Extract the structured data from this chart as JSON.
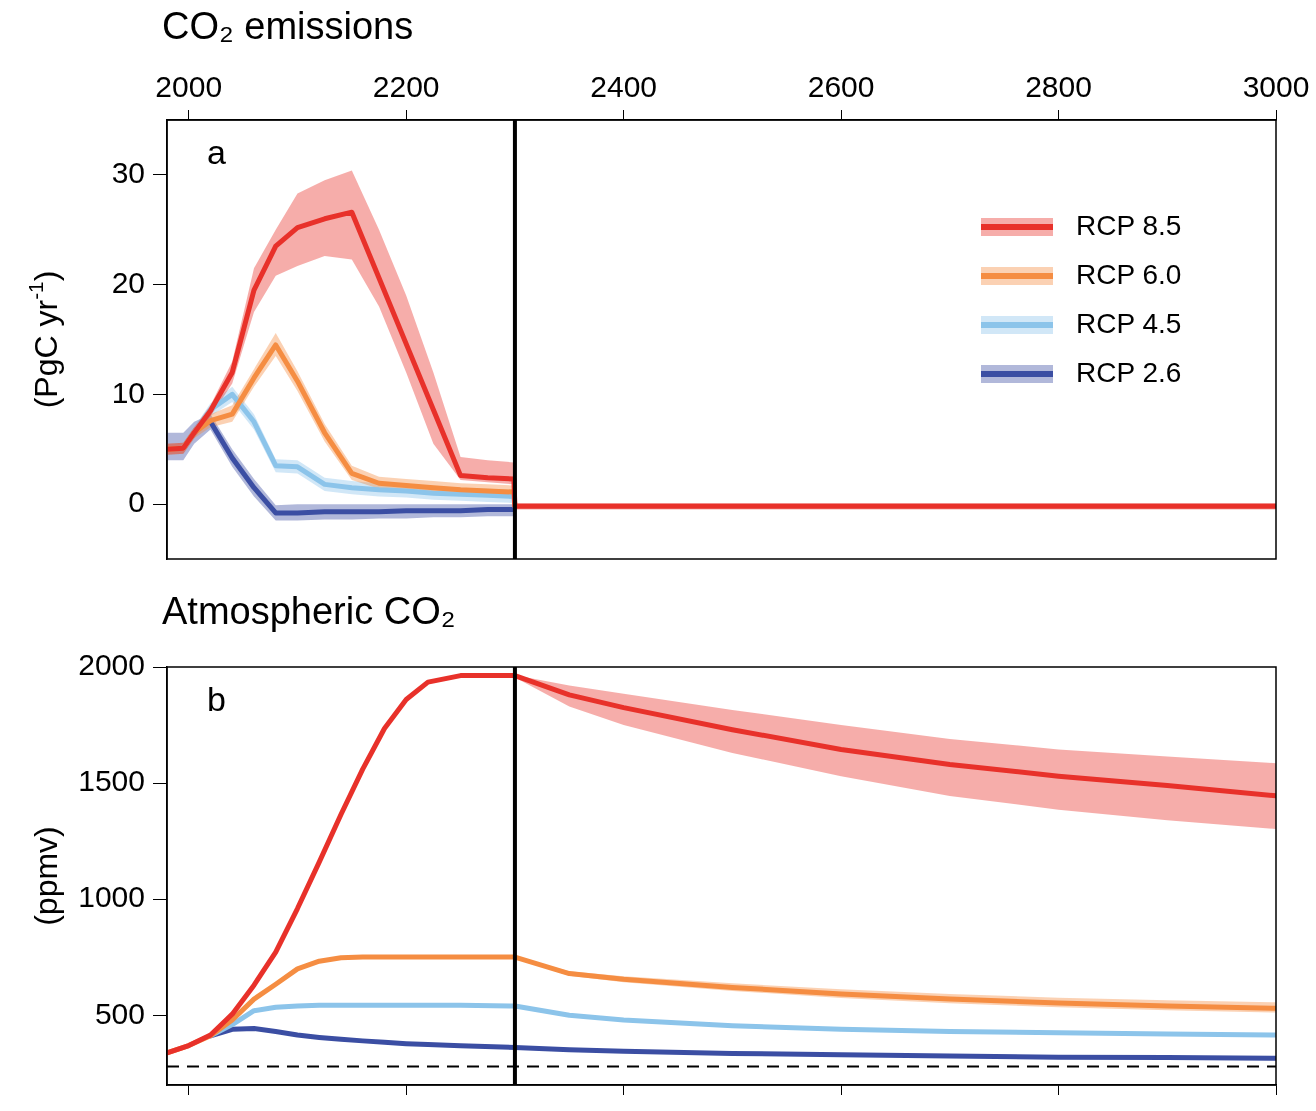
{
  "chart_data": [
    {
      "type": "line",
      "title": "CO₂ emissions",
      "ylabel": "(PgC yr$^{-1}$)",
      "annotations": [
        "a"
      ],
      "x": [
        1980,
        1995,
        2005,
        2020,
        2040,
        2060,
        2080,
        2100,
        2125,
        2150,
        2175,
        2200,
        2225,
        2250,
        2275,
        2299,
        2300,
        2400,
        2500,
        2600,
        2700,
        2800,
        2900,
        3000
      ],
      "xlim": [
        1980,
        3000
      ],
      "xticks": [
        2000,
        2200,
        2400,
        2600,
        2800,
        3000
      ],
      "ylim": [
        -5,
        35
      ],
      "yticks": [
        0,
        10,
        20,
        30
      ],
      "marker": "none",
      "legend": "top right",
      "ref_lines": [
        {
          "axis": "x",
          "value": 2300,
          "color": "#000000"
        }
      ],
      "series": [
        {
          "name": "RCP 8.5",
          "color": "#e8312a",
          "values": [
            5.0,
            5.1,
            6.5,
            8.5,
            12,
            19.5,
            23.5,
            25.2,
            26,
            26.6,
            20.6,
            14.6,
            8.6,
            2.6,
            2.4,
            2.3,
            -0.2,
            -0.2,
            -0.2,
            -0.2,
            -0.2,
            -0.2,
            -0.2,
            -0.2
          ],
          "lower": [
            4.5,
            4.6,
            6,
            8,
            11,
            17.5,
            20.8,
            21.7,
            22.6,
            22.3,
            18,
            12,
            5.5,
            2.2,
            2.0,
            1.8,
            -0.5,
            -0.5,
            -0.5,
            -0.5,
            -0.5,
            -0.5,
            -0.5,
            -0.5
          ],
          "upper": [
            5.5,
            5.6,
            7,
            9,
            13,
            21.5,
            25,
            28.3,
            29.5,
            30.4,
            25,
            19,
            12,
            4.3,
            4.0,
            3.8,
            0.1,
            0.1,
            0.1,
            0.1,
            0.1,
            0.1,
            0.1,
            0.1
          ]
        },
        {
          "name": "RCP 6.0",
          "color": "#f58d42",
          "values": [
            5.0,
            5.1,
            6.5,
            7.6,
            8.2,
            11.5,
            14.5,
            11.2,
            6.5,
            2.8,
            1.9,
            1.7,
            1.5,
            1.3,
            1.2,
            1.1,
            -0.2,
            null,
            null,
            null,
            null,
            null,
            null,
            null
          ],
          "lower": [
            4.5,
            4.6,
            6,
            7,
            7.5,
            10.7,
            13.5,
            10.3,
            5.7,
            2.2,
            1.4,
            1.2,
            1.0,
            0.8,
            0.7,
            0.6,
            -0.5,
            null,
            null,
            null,
            null,
            null,
            null,
            null
          ],
          "upper": [
            5.5,
            5.6,
            7,
            8.2,
            9,
            12.3,
            15.6,
            12.1,
            7.3,
            3.5,
            2.5,
            2.3,
            2.1,
            1.9,
            1.8,
            1.7,
            0.1,
            null,
            null,
            null,
            null,
            null,
            null,
            null
          ]
        },
        {
          "name": "RCP 4.5",
          "color": "#8cc4ea",
          "values": [
            null,
            5.1,
            6.5,
            8.6,
            10,
            7.5,
            3.5,
            3.4,
            1.8,
            1.5,
            1.3,
            1.2,
            1.0,
            0.9,
            0.8,
            0.7,
            -0.2,
            null,
            null,
            null,
            null,
            null,
            null,
            null
          ],
          "lower": [
            4.5,
            4.6,
            6,
            8,
            9.3,
            6.8,
            2.9,
            2.8,
            1.2,
            0.9,
            0.7,
            0.6,
            0.4,
            0.3,
            0.2,
            0.1,
            -0.5,
            null,
            null,
            null,
            null,
            null,
            null,
            null
          ],
          "upper": [
            5.5,
            5.6,
            7,
            9.2,
            10.7,
            8.2,
            4.1,
            4.0,
            2.4,
            2.1,
            1.9,
            1.8,
            1.6,
            1.5,
            1.4,
            1.3,
            0.1,
            null,
            null,
            null,
            null,
            null,
            null,
            null
          ]
        },
        {
          "name": "RCP 2.6",
          "color": "#3b4ea3",
          "values": [
            null,
            null,
            null,
            7.5,
            4.2,
            1.5,
            -0.8,
            -0.8,
            -0.7,
            -0.7,
            -0.7,
            -0.6,
            -0.6,
            -0.6,
            -0.5,
            -0.5,
            -0.2,
            null,
            null,
            null,
            null,
            null,
            null,
            null
          ],
          "lower": [
            4,
            4,
            5.5,
            6.8,
            3.4,
            0.7,
            -1.5,
            -1.5,
            -1.4,
            -1.4,
            -1.3,
            -1.3,
            -1.2,
            -1.2,
            -1.1,
            -1.1,
            -0.5,
            null,
            null,
            null,
            null,
            null,
            null,
            null
          ],
          "upper": [
            6.5,
            6.5,
            7.5,
            8.2,
            5,
            2.3,
            -0.1,
            0,
            0,
            0,
            0,
            0,
            0,
            0,
            0,
            0,
            0.1,
            null,
            null,
            null,
            null,
            null,
            null,
            null
          ]
        }
      ]
    },
    {
      "type": "line",
      "title": "Atmospheric CO₂",
      "ylabel": "(ppmv)",
      "annotations": [
        "b"
      ],
      "x": [
        1980,
        2000,
        2020,
        2040,
        2060,
        2080,
        2100,
        2120,
        2140,
        2160,
        2180,
        2200,
        2220,
        2250,
        2300,
        2350,
        2400,
        2500,
        2600,
        2700,
        2800,
        2900,
        3000
      ],
      "xlim": [
        1980,
        3000
      ],
      "xticks": [
        2000,
        2200,
        2400,
        2600,
        2800,
        3000
      ],
      "ylim": [
        200,
        2000
      ],
      "yticks": [
        500,
        1000,
        1500,
        2000
      ],
      "tick_labels": "y",
      "marker": "none",
      "ref_lines": [
        {
          "axis": "x",
          "value": 2300,
          "color": "#000000"
        },
        {
          "axis": "y",
          "value": 280,
          "color": "#000000",
          "line_style": "dashed"
        }
      ],
      "series": [
        {
          "color": "#e8312a",
          "values": [
            338,
            370,
            415,
            505,
            630,
            772,
            960,
            1160,
            1365,
            1560,
            1735,
            1860,
            1935,
            1963,
            1963,
            1880,
            1825,
            1730,
            1645,
            1580,
            1530,
            1490,
            1445
          ],
          "lower": [
            null,
            null,
            null,
            null,
            null,
            null,
            null,
            null,
            null,
            null,
            null,
            null,
            null,
            null,
            1955,
            1830,
            1750,
            1630,
            1530,
            1445,
            1385,
            1340,
            1302
          ],
          "upper": [
            null,
            null,
            null,
            null,
            null,
            null,
            null,
            null,
            null,
            null,
            null,
            null,
            null,
            null,
            1965,
            1920,
            1885,
            1815,
            1750,
            1690,
            1645,
            1615,
            1586
          ]
        },
        {
          "color": "#f58d42",
          "values": [
            338,
            370,
            412,
            480,
            570,
            634,
            700,
            733,
            748,
            751,
            751,
            751,
            751,
            751,
            751,
            680,
            655,
            620,
            592,
            570,
            553,
            540,
            530
          ],
          "lower": [
            null,
            null,
            null,
            null,
            null,
            null,
            null,
            null,
            null,
            null,
            null,
            null,
            null,
            null,
            745,
            670,
            643,
            605,
            575,
            552,
            535,
            522,
            512
          ],
          "upper": [
            null,
            null,
            null,
            null,
            null,
            null,
            null,
            null,
            null,
            null,
            null,
            null,
            null,
            null,
            755,
            690,
            668,
            638,
            612,
            592,
            576,
            565,
            556
          ]
        },
        {
          "color": "#8cc4ea",
          "values": [
            null,
            null,
            412,
            460,
            520,
            535,
            540,
            543,
            543,
            543,
            543,
            543,
            543,
            543,
            540,
            500,
            480,
            455,
            440,
            430,
            425,
            420,
            415
          ]
        },
        {
          "color": "#3b4ea3",
          "values": [
            null,
            null,
            412,
            440,
            443,
            430,
            415,
            405,
            397,
            390,
            384,
            378,
            374,
            369,
            362,
            352,
            345,
            336,
            330,
            325,
            320,
            318,
            315
          ]
        }
      ]
    }
  ]
}
